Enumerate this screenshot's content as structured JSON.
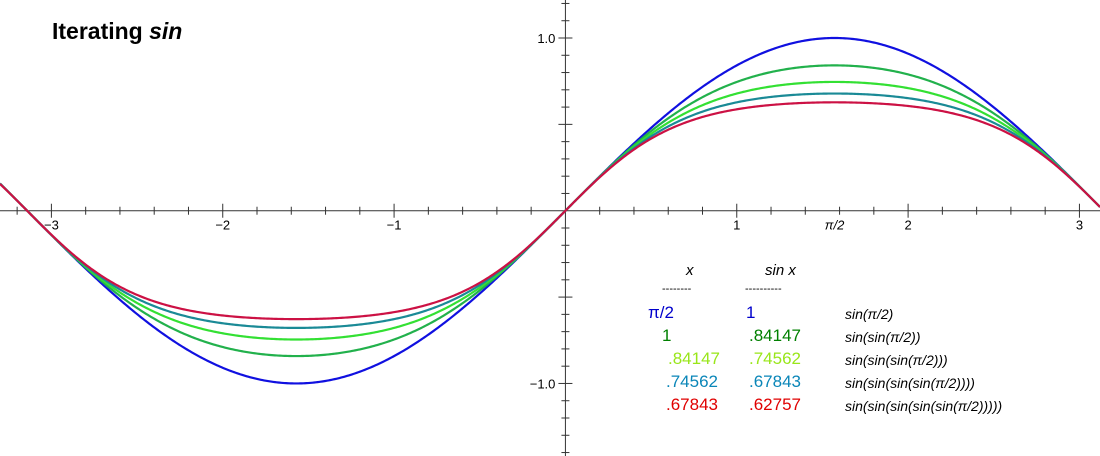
{
  "title": {
    "main": "Iterating ",
    "italic": "sin"
  },
  "chart_data": {
    "type": "line",
    "title": "Iterating sin",
    "xlabel": "",
    "ylabel": "",
    "xlim": [
      -3.3,
      3.12
    ],
    "ylim": [
      -1.42,
      1.22
    ],
    "grid": false,
    "x_ticks": [
      {
        "value": -3,
        "label": "−3"
      },
      {
        "value": -2,
        "label": "−2"
      },
      {
        "value": -1,
        "label": "−1"
      },
      {
        "value": 1,
        "label": "1"
      },
      {
        "value": 1.5708,
        "label": "π/2"
      },
      {
        "value": 2,
        "label": "2"
      },
      {
        "value": 3,
        "label": "3"
      }
    ],
    "y_ticks": [
      {
        "value": 1.0,
        "label": "1.0"
      },
      {
        "value": -1.0,
        "label": "−1.0"
      }
    ],
    "series": [
      {
        "expression": "sin(x)",
        "depth": 1,
        "color": "#1010e0"
      },
      {
        "expression": "sin(sin(x))",
        "depth": 2,
        "color": "#22b14c"
      },
      {
        "expression": "sin(sin(sin(x)))",
        "depth": 3,
        "color": "#33e033"
      },
      {
        "expression": "sin(sin(sin(sin(x))))",
        "depth": 4,
        "color": "#1a8a96"
      },
      {
        "expression": "sin(sin(sin(sin(sin(x)))))",
        "depth": 5,
        "color": "#cc1144"
      }
    ]
  },
  "table": {
    "header_x": "x",
    "header_sinx": "sin x",
    "dash_x": "--------",
    "dash_sinx": "----------",
    "rows": [
      {
        "x": "π/2",
        "sinx": "1",
        "expr": "sin(π/2)",
        "color": "#0000cc"
      },
      {
        "x": "1",
        "sinx": ".84147",
        "expr": "sin(sin(π/2))",
        "color": "#008000"
      },
      {
        "x": ".84147",
        "sinx": ".74562",
        "expr": "sin(sin(sin(π/2)))",
        "color": "#99e619"
      },
      {
        "x": ".74562",
        "sinx": ".67843",
        "expr": "sin(sin(sin(sin(π/2))))",
        "color": "#0a86b8"
      },
      {
        "x": ".67843",
        "sinx": ".62757",
        "expr": "sin(sin(sin(sin(sin(π/2)))))",
        "color": "#e00000"
      }
    ]
  }
}
